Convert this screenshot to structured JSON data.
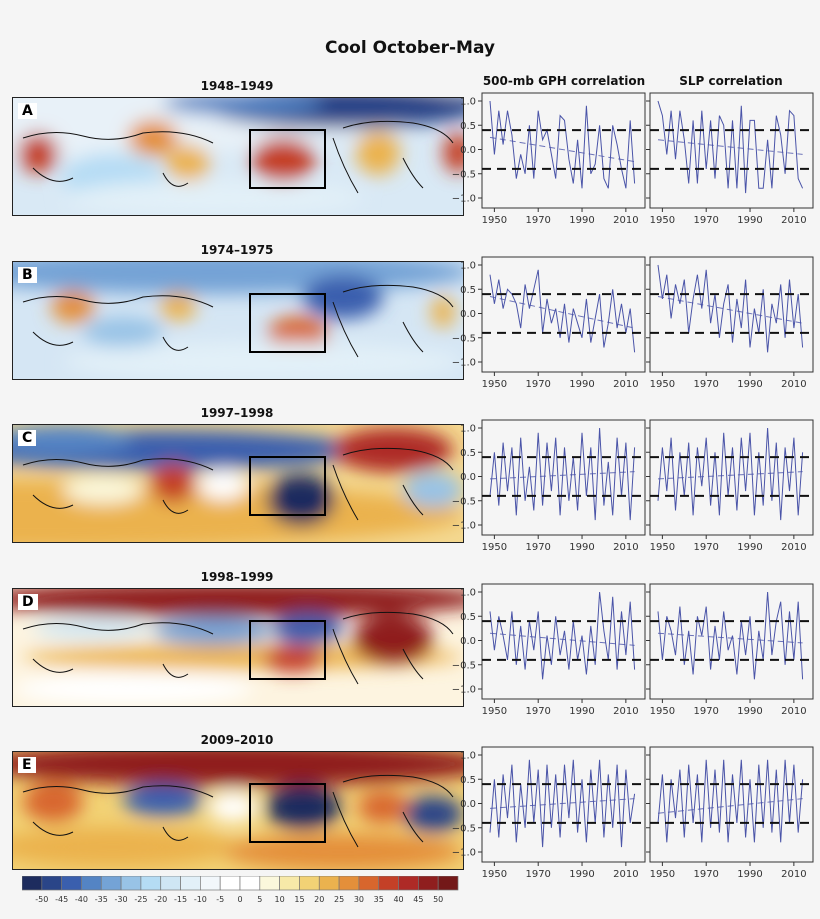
{
  "title": "Cool October-May",
  "column_headers": {
    "gph": "500-mb GPH correlation",
    "slp": "SLP correlation"
  },
  "colorbar": {
    "labels": [
      "-50",
      "-45",
      "-40",
      "-35",
      "-30",
      "-25",
      "-20",
      "-15",
      "-10",
      "-5",
      "0",
      "5",
      "10",
      "15",
      "20",
      "25",
      "30",
      "35",
      "40",
      "45",
      "50"
    ],
    "colors": [
      "#1d2c5e",
      "#2a4588",
      "#3a5fae",
      "#5484c4",
      "#74a3d6",
      "#98c3e6",
      "#b5dcf4",
      "#cfe6f4",
      "#e2f0f8",
      "#f2f7fb",
      "#ffffff",
      "#ffffff",
      "#fbf8dc",
      "#f7e9a8",
      "#f2d275",
      "#ebb24e",
      "#e48f3a",
      "#d8662d",
      "#c44027",
      "#ae2a26",
      "#8f1e1e",
      "#731818"
    ]
  },
  "chart_data": [
    {
      "type": "line",
      "panel": "A",
      "label": "1948–1949",
      "years_from": 1948,
      "years_step": 2,
      "ylim": [
        -1.0,
        1.0
      ],
      "yticks": [
        "1.0",
        "0.5",
        "0.0",
        "−0.5",
        "−1.0"
      ],
      "xticks": [
        "1950",
        "1970",
        "1990",
        "2010"
      ],
      "thresholds": [
        0.4,
        -0.4
      ],
      "gph": {
        "values": [
          1.0,
          -0.1,
          0.8,
          0.1,
          0.8,
          0.3,
          -0.6,
          -0.1,
          -0.5,
          0.5,
          -0.6,
          0.8,
          0.2,
          0.4,
          -0.1,
          -0.6,
          0.7,
          0.6,
          -0.2,
          -0.7,
          0.2,
          -0.8,
          0.9,
          -0.5,
          -0.3,
          0.5,
          -0.6,
          -0.8,
          0.5,
          0.1,
          -0.4,
          -0.8,
          0.6,
          -0.7
        ],
        "trend": [
          0.25,
          -0.25
        ]
      },
      "slp": {
        "values": [
          1.0,
          0.7,
          -0.1,
          0.8,
          -0.2,
          0.8,
          0.2,
          -0.7,
          0.6,
          -0.7,
          0.8,
          -0.4,
          0.6,
          -0.6,
          0.7,
          0.5,
          -0.8,
          0.6,
          -0.8,
          0.9,
          -0.9,
          0.6,
          0.6,
          -0.8,
          -0.8,
          0.2,
          -0.8,
          0.7,
          0.3,
          -0.5,
          0.8,
          0.7,
          -0.6,
          -0.8
        ],
        "trend": [
          0.2,
          -0.1
        ]
      }
    },
    {
      "type": "line",
      "panel": "B",
      "label": "1974–1975",
      "years_from": 1948,
      "years_step": 2,
      "ylim": [
        -1.0,
        1.0
      ],
      "yticks": [
        "1.0",
        "0.5",
        "0.0",
        "−0.5",
        "−1.0"
      ],
      "xticks": [
        "1950",
        "1970",
        "1990",
        "2010"
      ],
      "thresholds": [
        0.4,
        -0.4
      ],
      "gph": {
        "values": [
          0.8,
          0.2,
          0.7,
          0.1,
          0.5,
          0.4,
          0.2,
          -0.3,
          0.6,
          0.1,
          0.5,
          0.9,
          -0.4,
          0.3,
          -0.2,
          0.1,
          -0.5,
          0.2,
          -0.6,
          0.1,
          -0.2,
          -0.5,
          0.3,
          -0.6,
          -0.1,
          0.4,
          -0.7,
          -0.2,
          0.5,
          -0.3,
          0.2,
          -0.4,
          0.1,
          -0.8
        ],
        "trend": [
          0.35,
          -0.3
        ]
      },
      "slp": {
        "values": [
          1.0,
          0.3,
          0.8,
          -0.1,
          0.6,
          0.2,
          0.7,
          -0.4,
          0.3,
          0.8,
          0.1,
          0.9,
          -0.2,
          0.4,
          -0.5,
          0.2,
          0.6,
          -0.6,
          0.3,
          -0.3,
          0.7,
          -0.7,
          0.1,
          -0.4,
          0.5,
          -0.8,
          0.2,
          -0.2,
          0.6,
          -0.5,
          0.7,
          -0.3,
          0.4,
          -0.7
        ],
        "trend": [
          0.35,
          -0.2
        ]
      }
    },
    {
      "type": "line",
      "panel": "C",
      "label": "1997–1998",
      "years_from": 1948,
      "years_step": 2,
      "ylim": [
        -1.0,
        1.0
      ],
      "yticks": [
        "1.0",
        "0.5",
        "0.0",
        "−0.5",
        "−1.0"
      ],
      "xticks": [
        "1950",
        "1970",
        "1990",
        "2010"
      ],
      "thresholds": [
        0.4,
        -0.4
      ],
      "gph": {
        "values": [
          -0.4,
          0.5,
          -0.6,
          0.7,
          -0.3,
          0.6,
          -0.8,
          0.8,
          -0.5,
          0.2,
          -0.7,
          0.9,
          -0.6,
          0.7,
          -0.3,
          0.8,
          -0.8,
          0.6,
          -0.5,
          0.4,
          -0.7,
          0.9,
          -0.4,
          0.6,
          -0.9,
          1.0,
          -0.6,
          0.3,
          -0.8,
          0.8,
          -0.4,
          0.7,
          -0.9,
          0.6
        ],
        "trend": [
          -0.05,
          0.1
        ]
      },
      "slp": {
        "values": [
          -0.5,
          0.6,
          -0.3,
          0.8,
          -0.7,
          0.5,
          -0.4,
          0.7,
          -0.8,
          0.6,
          -0.2,
          0.8,
          -0.6,
          0.5,
          -0.8,
          0.9,
          -0.4,
          0.6,
          -0.7,
          0.8,
          -0.3,
          0.9,
          -0.8,
          0.5,
          -0.6,
          1.0,
          -0.5,
          0.7,
          -0.9,
          0.6,
          -0.3,
          0.8,
          -0.8,
          0.5
        ],
        "trend": [
          -0.05,
          0.1
        ]
      }
    },
    {
      "type": "line",
      "panel": "D",
      "label": "1998–1999",
      "years_from": 1948,
      "years_step": 2,
      "ylim": [
        -1.0,
        1.0
      ],
      "yticks": [
        "1.0",
        "0.5",
        "0.0",
        "−0.5",
        "−1.0"
      ],
      "xticks": [
        "1950",
        "1970",
        "1990",
        "2010"
      ],
      "thresholds": [
        0.4,
        -0.4
      ],
      "gph": {
        "values": [
          0.6,
          -0.2,
          0.5,
          0.1,
          -0.4,
          0.6,
          -0.5,
          0.3,
          -0.6,
          0.4,
          -0.2,
          0.6,
          -0.8,
          0.1,
          -0.5,
          0.5,
          -0.3,
          0.2,
          -0.6,
          0.4,
          -0.4,
          0.1,
          -0.7,
          0.3,
          -0.5,
          1.0,
          0.2,
          -0.4,
          0.9,
          -0.6,
          0.6,
          -0.3,
          0.8,
          -0.6
        ],
        "trend": [
          0.15,
          -0.1
        ]
      },
      "slp": {
        "values": [
          0.6,
          -0.4,
          0.5,
          0.2,
          -0.3,
          0.7,
          -0.5,
          0.2,
          -0.7,
          0.5,
          0.1,
          0.7,
          -0.6,
          0.3,
          -0.4,
          0.6,
          -0.2,
          0.1,
          -0.7,
          0.4,
          -0.3,
          0.5,
          -0.8,
          0.2,
          -0.4,
          1.0,
          -0.3,
          0.4,
          0.8,
          -0.5,
          0.6,
          -0.4,
          0.8,
          -0.8
        ],
        "trend": [
          0.15,
          -0.05
        ]
      }
    },
    {
      "type": "line",
      "panel": "E",
      "label": "2009–2010",
      "years_from": 1948,
      "years_step": 2,
      "ylim": [
        -1.0,
        1.0
      ],
      "yticks": [
        "1.0",
        "0.5",
        "0.0",
        "−0.5",
        "−1.0"
      ],
      "xticks": [
        "1950",
        "1970",
        "1990",
        "2010"
      ],
      "thresholds": [
        0.4,
        -0.4
      ],
      "gph": {
        "values": [
          -0.6,
          0.5,
          -0.7,
          0.6,
          -0.3,
          0.8,
          -0.8,
          0.4,
          -0.5,
          0.9,
          -0.4,
          0.7,
          -0.9,
          0.8,
          -0.5,
          0.6,
          -0.7,
          0.8,
          -0.3,
          0.9,
          -0.6,
          0.5,
          -0.8,
          0.7,
          -0.4,
          0.9,
          -0.7,
          0.6,
          -0.5,
          0.8,
          -0.9,
          0.7,
          -0.4,
          0.2
        ],
        "trend": [
          -0.1,
          0.1
        ]
      },
      "slp": {
        "values": [
          -0.4,
          0.6,
          -0.8,
          0.5,
          -0.3,
          0.7,
          -0.7,
          0.8,
          -0.4,
          0.6,
          -0.8,
          0.9,
          -0.5,
          0.7,
          -0.6,
          0.9,
          -0.8,
          0.6,
          -0.4,
          0.9,
          -0.7,
          0.5,
          -0.8,
          0.8,
          -0.5,
          0.9,
          -0.6,
          0.7,
          -0.8,
          0.9,
          -0.4,
          0.8,
          -0.6,
          0.5
        ],
        "trend": [
          -0.2,
          0.1
        ]
      }
    }
  ]
}
